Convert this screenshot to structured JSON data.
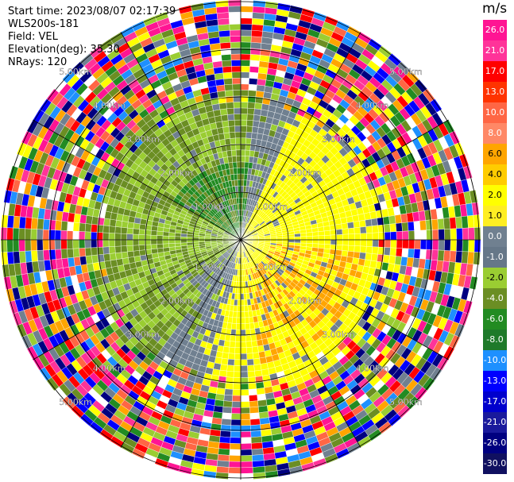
{
  "header": {
    "start_time": "Start time: 2023/08/07 02:17:39",
    "station": "WLS200s-181",
    "field": "Field: VEL",
    "elevation": "Elevation(deg): 35.30",
    "nrays": "NRays: 120"
  },
  "range_rings": {
    "count": 5,
    "labels": [
      "1.00km",
      "2.00km",
      "3.00km",
      "4.00km",
      "5.00km"
    ]
  },
  "colorbar": {
    "unit": "m/s",
    "ticks": [
      "26.0",
      "21.0",
      "17.0",
      "13.0",
      "10.0",
      "8.0",
      "6.0",
      "4.0",
      "2.0",
      "1.0",
      "0.0",
      "-1.0",
      "-2.0",
      "-4.0",
      "-6.0",
      "-8.0",
      "-10.0",
      "-13.0",
      "-17.0",
      "-21.0",
      "-26.0",
      "-30.0"
    ],
    "colors": [
      "#ff1493",
      "#ff3399",
      "#ff0000",
      "#ff3300",
      "#ff6644",
      "#ff8866",
      "#ffa500",
      "#ffcc00",
      "#ffff00",
      "#ffee22",
      "#708090",
      "#667788",
      "#9acd32",
      "#6b8e23",
      "#228b22",
      "#1e7a2a",
      "#1e90ff",
      "#0000ff",
      "#0000cd",
      "#1a1a9c",
      "#000080",
      "#101060"
    ]
  },
  "ppi_colors": {
    "approaching_dark": "#228b22",
    "approaching": "#6b8e23",
    "approaching_light": "#9acd32",
    "near_zero": "#708090",
    "receding": "#ffff00",
    "receding_strong": "#ffa500",
    "noise": [
      "#ff1493",
      "#0000ff",
      "#ffff00",
      "#ff0000",
      "#9acd32",
      "#228b22",
      "#ffa500",
      "#708090",
      "#000080",
      "#ff6644",
      "#1e90ff",
      "#6b8e23",
      "#ffffff",
      "#ff3399"
    ]
  }
}
